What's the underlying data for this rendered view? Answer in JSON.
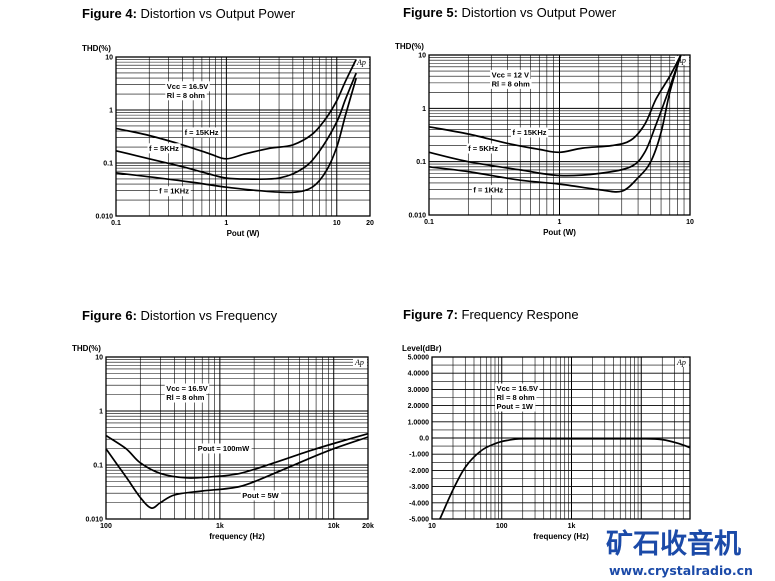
{
  "chart_data": [
    {
      "type": "line",
      "figure_label": "Figure 4:",
      "title": "Distortion vs Output Power",
      "ylabel": "THD(%)",
      "xlabel": "Pout (W)",
      "x_scale": "log",
      "y_scale": "log",
      "xlim": [
        0.1,
        20
      ],
      "ylim": [
        0.01,
        10
      ],
      "x_ticks": [
        "0.1",
        "1",
        "10",
        "20"
      ],
      "y_ticks": [
        "0.010",
        "0.1",
        "1",
        "10"
      ],
      "grid": true,
      "annotations": [
        "Vcc = 16.5V",
        "Rl = 8 ohm"
      ],
      "series": [
        {
          "name": "f = 15KHz",
          "points": [
            [
              0.1,
              0.45
            ],
            [
              0.2,
              0.33
            ],
            [
              0.4,
              0.22
            ],
            [
              0.7,
              0.15
            ],
            [
              1.0,
              0.12
            ],
            [
              1.5,
              0.15
            ],
            [
              2.5,
              0.19
            ],
            [
              4.0,
              0.22
            ],
            [
              6.0,
              0.35
            ],
            [
              8.0,
              0.7
            ],
            [
              10,
              1.5
            ],
            [
              12,
              3.5
            ],
            [
              15,
              9
            ]
          ]
        },
        {
          "name": "f = 5KHz",
          "points": [
            [
              0.1,
              0.17
            ],
            [
              0.2,
              0.12
            ],
            [
              0.4,
              0.085
            ],
            [
              0.7,
              0.062
            ],
            [
              1.0,
              0.052
            ],
            [
              1.5,
              0.05
            ],
            [
              3.0,
              0.052
            ],
            [
              5.0,
              0.08
            ],
            [
              7.0,
              0.17
            ],
            [
              10,
              0.6
            ],
            [
              12,
              1.6
            ],
            [
              15,
              5
            ]
          ]
        },
        {
          "name": "f = 1KHz",
          "points": [
            [
              0.1,
              0.065
            ],
            [
              0.2,
              0.055
            ],
            [
              0.5,
              0.043
            ],
            [
              1.0,
              0.035
            ],
            [
              2.0,
              0.03
            ],
            [
              4.0,
              0.028
            ],
            [
              6.0,
              0.035
            ],
            [
              8.0,
              0.07
            ],
            [
              10,
              0.2
            ],
            [
              12,
              0.8
            ],
            [
              15,
              4
            ]
          ]
        }
      ]
    },
    {
      "type": "line",
      "figure_label": "Figure 5:",
      "title": "Distortion vs Output Power",
      "ylabel": "THD(%)",
      "xlabel": "Pout (W)",
      "x_scale": "log",
      "y_scale": "log",
      "xlim": [
        0.1,
        10
      ],
      "ylim": [
        0.01,
        10
      ],
      "x_ticks": [
        "0.1",
        "1",
        "10"
      ],
      "y_ticks": [
        "0.010",
        "0.1",
        "1",
        "10"
      ],
      "grid": true,
      "annotations": [
        "Vcc = 12 V",
        "Rl = 8 ohm"
      ],
      "series": [
        {
          "name": "f = 15KHz",
          "points": [
            [
              0.1,
              0.45
            ],
            [
              0.2,
              0.33
            ],
            [
              0.4,
              0.22
            ],
            [
              0.7,
              0.17
            ],
            [
              1.0,
              0.15
            ],
            [
              1.5,
              0.18
            ],
            [
              2.5,
              0.2
            ],
            [
              3.5,
              0.25
            ],
            [
              4.5,
              0.5
            ],
            [
              5.5,
              1.5
            ],
            [
              7.0,
              4
            ],
            [
              8.5,
              10
            ]
          ]
        },
        {
          "name": "f = 5KHz",
          "points": [
            [
              0.1,
              0.15
            ],
            [
              0.2,
              0.1
            ],
            [
              0.5,
              0.07
            ],
            [
              1.0,
              0.055
            ],
            [
              2.0,
              0.06
            ],
            [
              3.5,
              0.08
            ],
            [
              4.5,
              0.15
            ],
            [
              5.5,
              0.5
            ],
            [
              7.0,
              2.5
            ],
            [
              8.5,
              10
            ]
          ]
        },
        {
          "name": "f = 1KHz",
          "points": [
            [
              0.1,
              0.08
            ],
            [
              0.2,
              0.065
            ],
            [
              0.5,
              0.045
            ],
            [
              1.0,
              0.038
            ],
            [
              2.0,
              0.03
            ],
            [
              3.0,
              0.028
            ],
            [
              4.0,
              0.05
            ],
            [
              5.0,
              0.1
            ],
            [
              6.0,
              0.35
            ],
            [
              7.0,
              2.0
            ],
            [
              8.5,
              10
            ]
          ]
        }
      ]
    },
    {
      "type": "line",
      "figure_label": "Figure 6:",
      "title": "Distortion vs Frequency",
      "ylabel": "THD(%)",
      "xlabel": "frequency (Hz)",
      "x_scale": "log",
      "y_scale": "log",
      "xlim": [
        100,
        20000
      ],
      "ylim": [
        0.01,
        10
      ],
      "x_ticks": [
        "100",
        "1k",
        "10k",
        "20k"
      ],
      "y_ticks": [
        "0.010",
        "0.1",
        "1",
        "10"
      ],
      "grid": true,
      "annotations": [
        "Vcc = 16.5V",
        "Rl = 8 ohm"
      ],
      "series": [
        {
          "name": "Pout = 100mW",
          "points": [
            [
              100,
              0.35
            ],
            [
              150,
              0.2
            ],
            [
              200,
              0.11
            ],
            [
              300,
              0.07
            ],
            [
              500,
              0.058
            ],
            [
              800,
              0.06
            ],
            [
              1500,
              0.07
            ],
            [
              3000,
              0.11
            ],
            [
              6000,
              0.18
            ],
            [
              10000,
              0.25
            ],
            [
              20000,
              0.38
            ]
          ]
        },
        {
          "name": "Pout = 5W",
          "points": [
            [
              100,
              0.2
            ],
            [
              150,
              0.06
            ],
            [
              200,
              0.025
            ],
            [
              250,
              0.016
            ],
            [
              300,
              0.02
            ],
            [
              400,
              0.028
            ],
            [
              700,
              0.033
            ],
            [
              1500,
              0.04
            ],
            [
              3000,
              0.07
            ],
            [
              6000,
              0.13
            ],
            [
              10000,
              0.2
            ],
            [
              20000,
              0.33
            ]
          ]
        }
      ]
    },
    {
      "type": "line",
      "figure_label": "Figure 7:",
      "title": "Frequency Respone",
      "ylabel": "Level(dBr)",
      "xlabel": "frequency (Hz)",
      "x_scale": "log",
      "y_scale": "linear",
      "xlim": [
        10,
        50000
      ],
      "ylim": [
        -5,
        5
      ],
      "x_ticks": [
        "10",
        "100",
        "1k"
      ],
      "y_ticks": [
        "5.0000",
        "4.0000",
        "3.0000",
        "2.0000",
        "1.0000",
        "0.0",
        "-1.000",
        "-2.000",
        "-3.000",
        "-4.000",
        "-5.000"
      ],
      "grid": true,
      "annotations": [
        "Vcc = 16.5V",
        "Rl = 8 ohm",
        "Pout = 1W"
      ],
      "series": [
        {
          "name": "",
          "points": [
            [
              13,
              -5
            ],
            [
              20,
              -3.2
            ],
            [
              30,
              -1.8
            ],
            [
              50,
              -0.8
            ],
            [
              80,
              -0.35
            ],
            [
              120,
              -0.15
            ],
            [
              200,
              -0.05
            ],
            [
              1000,
              -0.05
            ],
            [
              10000,
              -0.05
            ],
            [
              20000,
              -0.1
            ],
            [
              35000,
              -0.35
            ],
            [
              50000,
              -0.6
            ]
          ]
        }
      ]
    }
  ],
  "logo_text": "Ap",
  "watermark": {
    "cn": "矿石收音机",
    "url": "www.crystalradio.cn"
  }
}
